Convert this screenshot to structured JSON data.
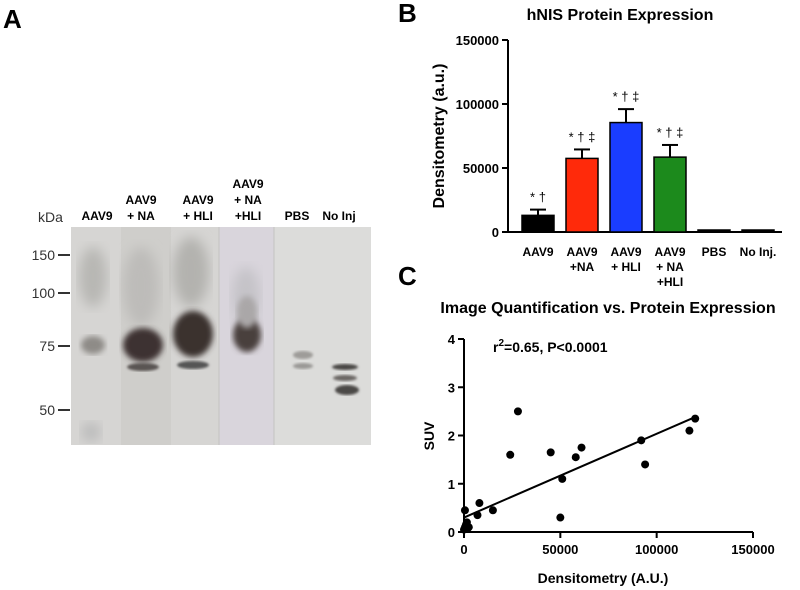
{
  "panel_a": {
    "letter": "A",
    "unit_label": "kDa",
    "lanes": [
      "AAV9",
      "AAV9\n+ NA",
      "AAV9\n+ HLI",
      "AAV9\n+ NA\n+HLI",
      "PBS",
      "No Inj"
    ],
    "markers": [
      "150",
      "100",
      "75",
      "50"
    ]
  },
  "chart_data": [
    {
      "type": "bar",
      "panel": "B",
      "title": "hNIS Protein Expression",
      "xlabel": "",
      "ylabel": "Densitometry (a.u.)",
      "ylim": [
        0,
        150000
      ],
      "yticks": [
        "0",
        "50000",
        "100000",
        "150000"
      ],
      "categories": [
        "AAV9",
        "AAV9\n+NA",
        "AAV9\n+ HLI",
        "AAV9\n+ NA\n+HLI",
        "PBS",
        "No Inj."
      ],
      "values": [
        13000,
        57500,
        85500,
        58500,
        1500,
        1500
      ],
      "errors": [
        4500,
        7000,
        10500,
        9500,
        0,
        0
      ],
      "colors": [
        "#000000",
        "#ff2a0a",
        "#1a3dff",
        "#1c8a1c",
        "#000000",
        "#000000"
      ],
      "annotations": [
        "* †",
        "* † ‡",
        "* † ‡",
        "* † ‡",
        "",
        ""
      ],
      "grid": false
    },
    {
      "type": "scatter",
      "panel": "C",
      "title": "Image Quantification vs. Protein Expression",
      "xlabel": "Densitometry (A.U.)",
      "ylabel": "SUV",
      "xlim": [
        0,
        150000
      ],
      "ylim": [
        0,
        4
      ],
      "xticks": [
        "0",
        "50000",
        "100000",
        "150000"
      ],
      "yticks": [
        "0",
        "1",
        "2",
        "3",
        "4"
      ],
      "annotation_text": "r",
      "annotation_sup": "2",
      "annotation_rest": "=0.65, P<0.0001",
      "points": [
        {
          "x": 0,
          "y": 0.05
        },
        {
          "x": 500,
          "y": 0.1
        },
        {
          "x": 1000,
          "y": 0.15
        },
        {
          "x": 1500,
          "y": 0.2
        },
        {
          "x": 2000,
          "y": 0.08
        },
        {
          "x": 500,
          "y": 0.45
        },
        {
          "x": 1500,
          "y": 0.12
        },
        {
          "x": 2500,
          "y": 0.1
        },
        {
          "x": 7000,
          "y": 0.35
        },
        {
          "x": 8000,
          "y": 0.6
        },
        {
          "x": 15000,
          "y": 0.45
        },
        {
          "x": 24000,
          "y": 1.6
        },
        {
          "x": 28000,
          "y": 2.5
        },
        {
          "x": 45000,
          "y": 1.65
        },
        {
          "x": 50000,
          "y": 0.3
        },
        {
          "x": 51000,
          "y": 1.1
        },
        {
          "x": 58000,
          "y": 1.55
        },
        {
          "x": 61000,
          "y": 1.75
        },
        {
          "x": 92000,
          "y": 1.9
        },
        {
          "x": 94000,
          "y": 1.4
        },
        {
          "x": 117000,
          "y": 2.1
        },
        {
          "x": 120000,
          "y": 2.35
        }
      ],
      "fit_line": [
        {
          "x": 0,
          "y": 0.3
        },
        {
          "x": 121000,
          "y": 2.4
        }
      ],
      "grid": false
    }
  ],
  "panel_b_letter": "B",
  "panel_c_letter": "C"
}
